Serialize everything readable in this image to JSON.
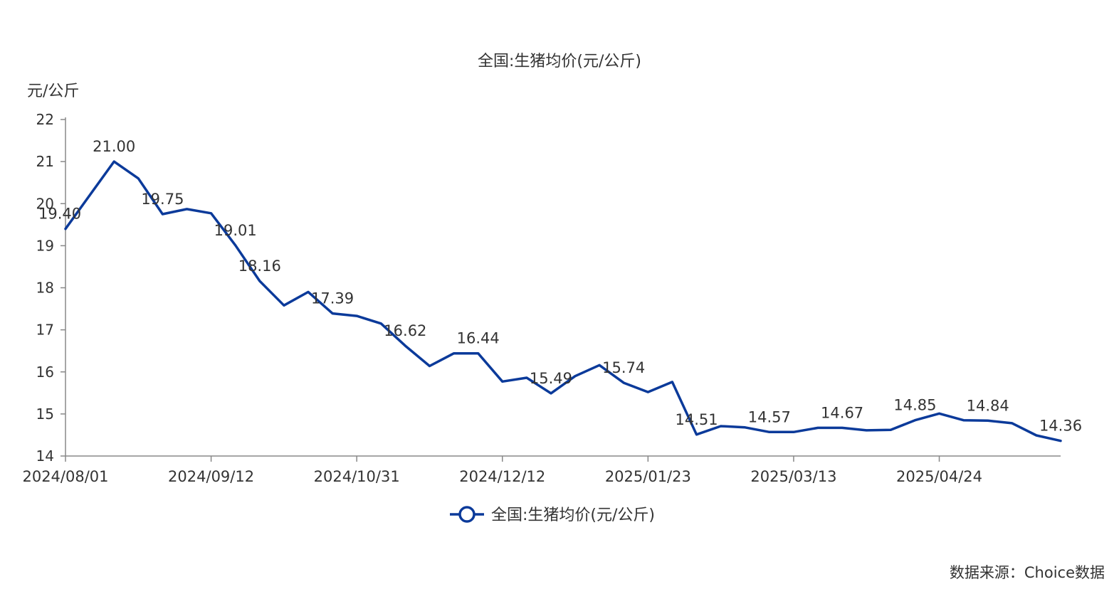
{
  "chart_data": {
    "type": "line",
    "title": "全国:生猪均价(元/公斤)",
    "ylabel": "元/公斤",
    "ylim": [
      14,
      22
    ],
    "yticks": [
      "14",
      "15",
      "16",
      "17",
      "18",
      "19",
      "20",
      "21",
      "22"
    ],
    "xticks": [
      "2024/08/01",
      "2024/09/12",
      "2024/10/31",
      "2024/12/12",
      "2025/01/23",
      "2025/03/13",
      "2025/04/24"
    ],
    "legend": {
      "position": "bottom-center"
    },
    "grid": false,
    "color": "#0b3a9a",
    "series": [
      {
        "name": "全国:生猪均价(元/公斤)",
        "values": [
          19.4,
          20.2,
          21.0,
          20.6,
          19.75,
          19.87,
          19.77,
          19.01,
          18.16,
          17.58,
          17.9,
          17.39,
          17.33,
          17.15,
          16.62,
          16.14,
          16.44,
          16.44,
          15.77,
          15.86,
          15.49,
          15.9,
          16.16,
          15.74,
          15.52,
          15.76,
          14.51,
          14.71,
          14.68,
          14.57,
          14.57,
          14.67,
          14.67,
          14.61,
          14.62,
          14.85,
          15.01,
          14.85,
          14.84,
          14.78,
          14.49,
          14.36
        ],
        "labels": [
          {
            "index": 0,
            "text": "19.40"
          },
          {
            "index": 2,
            "text": "21.00"
          },
          {
            "index": 4,
            "text": "19.75"
          },
          {
            "index": 7,
            "text": "19.01"
          },
          {
            "index": 8,
            "text": "18.16"
          },
          {
            "index": 11,
            "text": "17.39"
          },
          {
            "index": 14,
            "text": "16.62"
          },
          {
            "index": 17,
            "text": "16.44"
          },
          {
            "index": 20,
            "text": "15.49"
          },
          {
            "index": 23,
            "text": "15.74"
          },
          {
            "index": 26,
            "text": "14.51"
          },
          {
            "index": 29,
            "text": "14.57"
          },
          {
            "index": 32,
            "text": "14.67"
          },
          {
            "index": 35,
            "text": "14.85"
          },
          {
            "index": 38,
            "text": "14.84"
          },
          {
            "index": 41,
            "text": "14.36"
          }
        ]
      }
    ]
  },
  "source": "数据来源：Choice数据"
}
